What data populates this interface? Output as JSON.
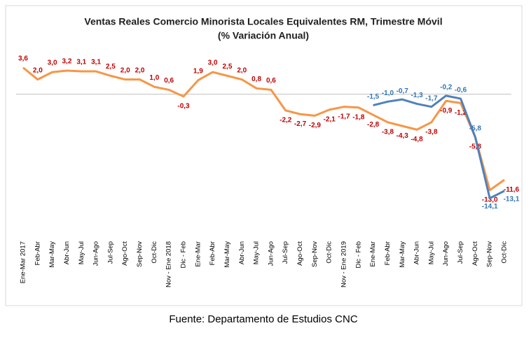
{
  "chart_data": {
    "type": "line",
    "title": "Ventas Reales Comercio Minorista Locales Equivalentes RM, Trimestre Móvil",
    "subtitle": "(% Variación Anual)",
    "source": "Fuente: Departamento de Estudios CNC",
    "categories": [
      "Ene-Mar 2017",
      "Feb-Abr",
      "Mar-May",
      "Abr-Jun",
      "May-Jul",
      "Jun-Ago",
      "Jul-Sep",
      "Ago-Oct",
      "Sep-Nov",
      "Oct-Dic",
      "Nov - Ene 2018",
      "Dic - Feb",
      "Ene-Mar",
      "Feb-Abr",
      "Mar-May",
      "Abr-Jun",
      "May-Jul",
      "Jun-Ago",
      "Jul-Sep",
      "Ago-Oct",
      "Sep-Nov",
      "Oct-Dic",
      "Nov - Ene 2019",
      "Dic - Feb",
      "Ene-Mar",
      "Feb-Abr",
      "Mar-May",
      "Abr-Jun",
      "May-Jul",
      "Jun-Ago",
      "Jul-Sep",
      "Ago-Oct",
      "Sep-Nov",
      "Oct-Dic"
    ],
    "ylim": [
      -15,
      5
    ],
    "series": [
      {
        "color": "#f79646",
        "label_color": "#c00000",
        "values": [
          3.6,
          2.0,
          3.0,
          3.2,
          3.1,
          3.1,
          2.5,
          2.0,
          2.0,
          1.0,
          0.6,
          -0.3,
          1.9,
          3.0,
          2.5,
          2.0,
          0.8,
          0.6,
          -2.2,
          -2.7,
          -2.9,
          -2.1,
          -1.7,
          -1.8,
          -2.8,
          -3.8,
          -4.3,
          -4.8,
          -3.8,
          -0.9,
          -1.2,
          -5.8,
          -13.0,
          -11.6
        ],
        "value_labels": [
          "3,6",
          "2,0",
          "3,0",
          "3,2",
          "3,1",
          "3,1",
          "2,5",
          "2,0",
          "2,0",
          "1,0",
          "0,6",
          "-0,3",
          "1,9",
          "3,0",
          "2,5",
          "2,0",
          "0,8",
          "0,6",
          "-2,2",
          "-2,7",
          "-2,9",
          "-2,1",
          "-1,7",
          "-1,8",
          "-2,8",
          "-3,8",
          "-4,3",
          "-4,8",
          "-3,8",
          "-0,9",
          "-1,2",
          "-5,8",
          "-13,0",
          "-11,6"
        ]
      },
      {
        "color": "#4f81bd",
        "label_color": "#2e75b6",
        "values": [
          null,
          null,
          null,
          null,
          null,
          null,
          null,
          null,
          null,
          null,
          null,
          null,
          null,
          null,
          null,
          null,
          null,
          null,
          null,
          null,
          null,
          null,
          null,
          null,
          -1.5,
          -1.0,
          -0.7,
          -1.3,
          -1.7,
          -0.2,
          -0.6,
          -5.8,
          -14.1,
          -13.1
        ],
        "value_labels": [
          null,
          null,
          null,
          null,
          null,
          null,
          null,
          null,
          null,
          null,
          null,
          null,
          null,
          null,
          null,
          null,
          null,
          null,
          null,
          null,
          null,
          null,
          null,
          null,
          "-1,5",
          "-1,0",
          "-0,7",
          "-1,3",
          "-1,7",
          "-0,2",
          "-0,6",
          "-5,8",
          "-14,1",
          "-13,1"
        ]
      }
    ]
  }
}
